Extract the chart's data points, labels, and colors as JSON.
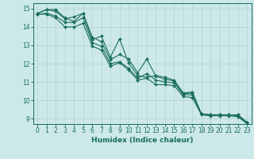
{
  "xlabel": "Humidex (Indice chaleur)",
  "xlim": [
    -0.5,
    23.5
  ],
  "ylim": [
    8.7,
    15.3
  ],
  "yticks": [
    9,
    10,
    11,
    12,
    13,
    14,
    15
  ],
  "xticks": [
    0,
    1,
    2,
    3,
    4,
    5,
    6,
    7,
    8,
    9,
    10,
    11,
    12,
    13,
    14,
    15,
    16,
    17,
    18,
    19,
    20,
    21,
    22,
    23
  ],
  "bg_color": "#cce8e8",
  "grid_color": "#b0d4d4",
  "line_color": "#1a6e60",
  "series": [
    {
      "x": [
        0,
        1,
        2,
        3,
        4,
        5,
        6,
        7,
        8,
        9,
        10,
        11,
        12,
        13,
        14,
        15,
        16,
        17,
        18,
        19,
        20,
        21,
        22,
        23
      ],
      "y": [
        14.75,
        14.95,
        14.95,
        14.5,
        14.3,
        14.75,
        13.3,
        13.5,
        12.35,
        13.35,
        12.05,
        11.35,
        11.25,
        11.35,
        11.25,
        11.1,
        10.4,
        10.45,
        9.25,
        9.2,
        9.2,
        9.2,
        9.2,
        8.8
      ]
    },
    {
      "x": [
        0,
        1,
        2,
        3,
        4,
        5,
        6,
        7,
        8,
        9,
        10,
        11,
        12,
        13,
        14,
        15,
        16,
        17,
        18,
        19,
        20,
        21,
        22,
        23
      ],
      "y": [
        14.75,
        14.95,
        14.85,
        14.45,
        14.55,
        14.75,
        13.45,
        13.2,
        12.2,
        12.5,
        12.25,
        11.5,
        12.25,
        11.3,
        11.15,
        11.05,
        10.35,
        10.4,
        9.25,
        9.2,
        9.2,
        9.2,
        9.2,
        8.8
      ]
    },
    {
      "x": [
        0,
        1,
        2,
        3,
        4,
        5,
        6,
        7,
        8,
        9,
        10,
        11,
        12,
        13,
        14,
        15,
        16,
        17,
        18,
        19,
        20,
        21,
        22,
        23
      ],
      "y": [
        14.7,
        14.75,
        14.6,
        14.25,
        14.25,
        14.5,
        13.15,
        12.95,
        12.0,
        12.1,
        11.75,
        11.2,
        11.45,
        11.1,
        11.0,
        10.95,
        10.3,
        10.3,
        9.25,
        9.2,
        9.2,
        9.2,
        9.15,
        8.78
      ]
    },
    {
      "x": [
        0,
        1,
        2,
        3,
        4,
        5,
        6,
        7,
        8,
        9,
        10,
        11,
        12,
        13,
        14,
        15,
        16,
        17,
        18,
        19,
        20,
        21,
        22,
        23
      ],
      "y": [
        14.7,
        14.7,
        14.5,
        14.0,
        14.0,
        14.2,
        12.95,
        12.75,
        11.85,
        12.05,
        11.65,
        11.1,
        11.2,
        10.85,
        10.85,
        10.8,
        10.2,
        10.15,
        9.2,
        9.15,
        9.15,
        9.15,
        9.1,
        8.72
      ]
    }
  ]
}
